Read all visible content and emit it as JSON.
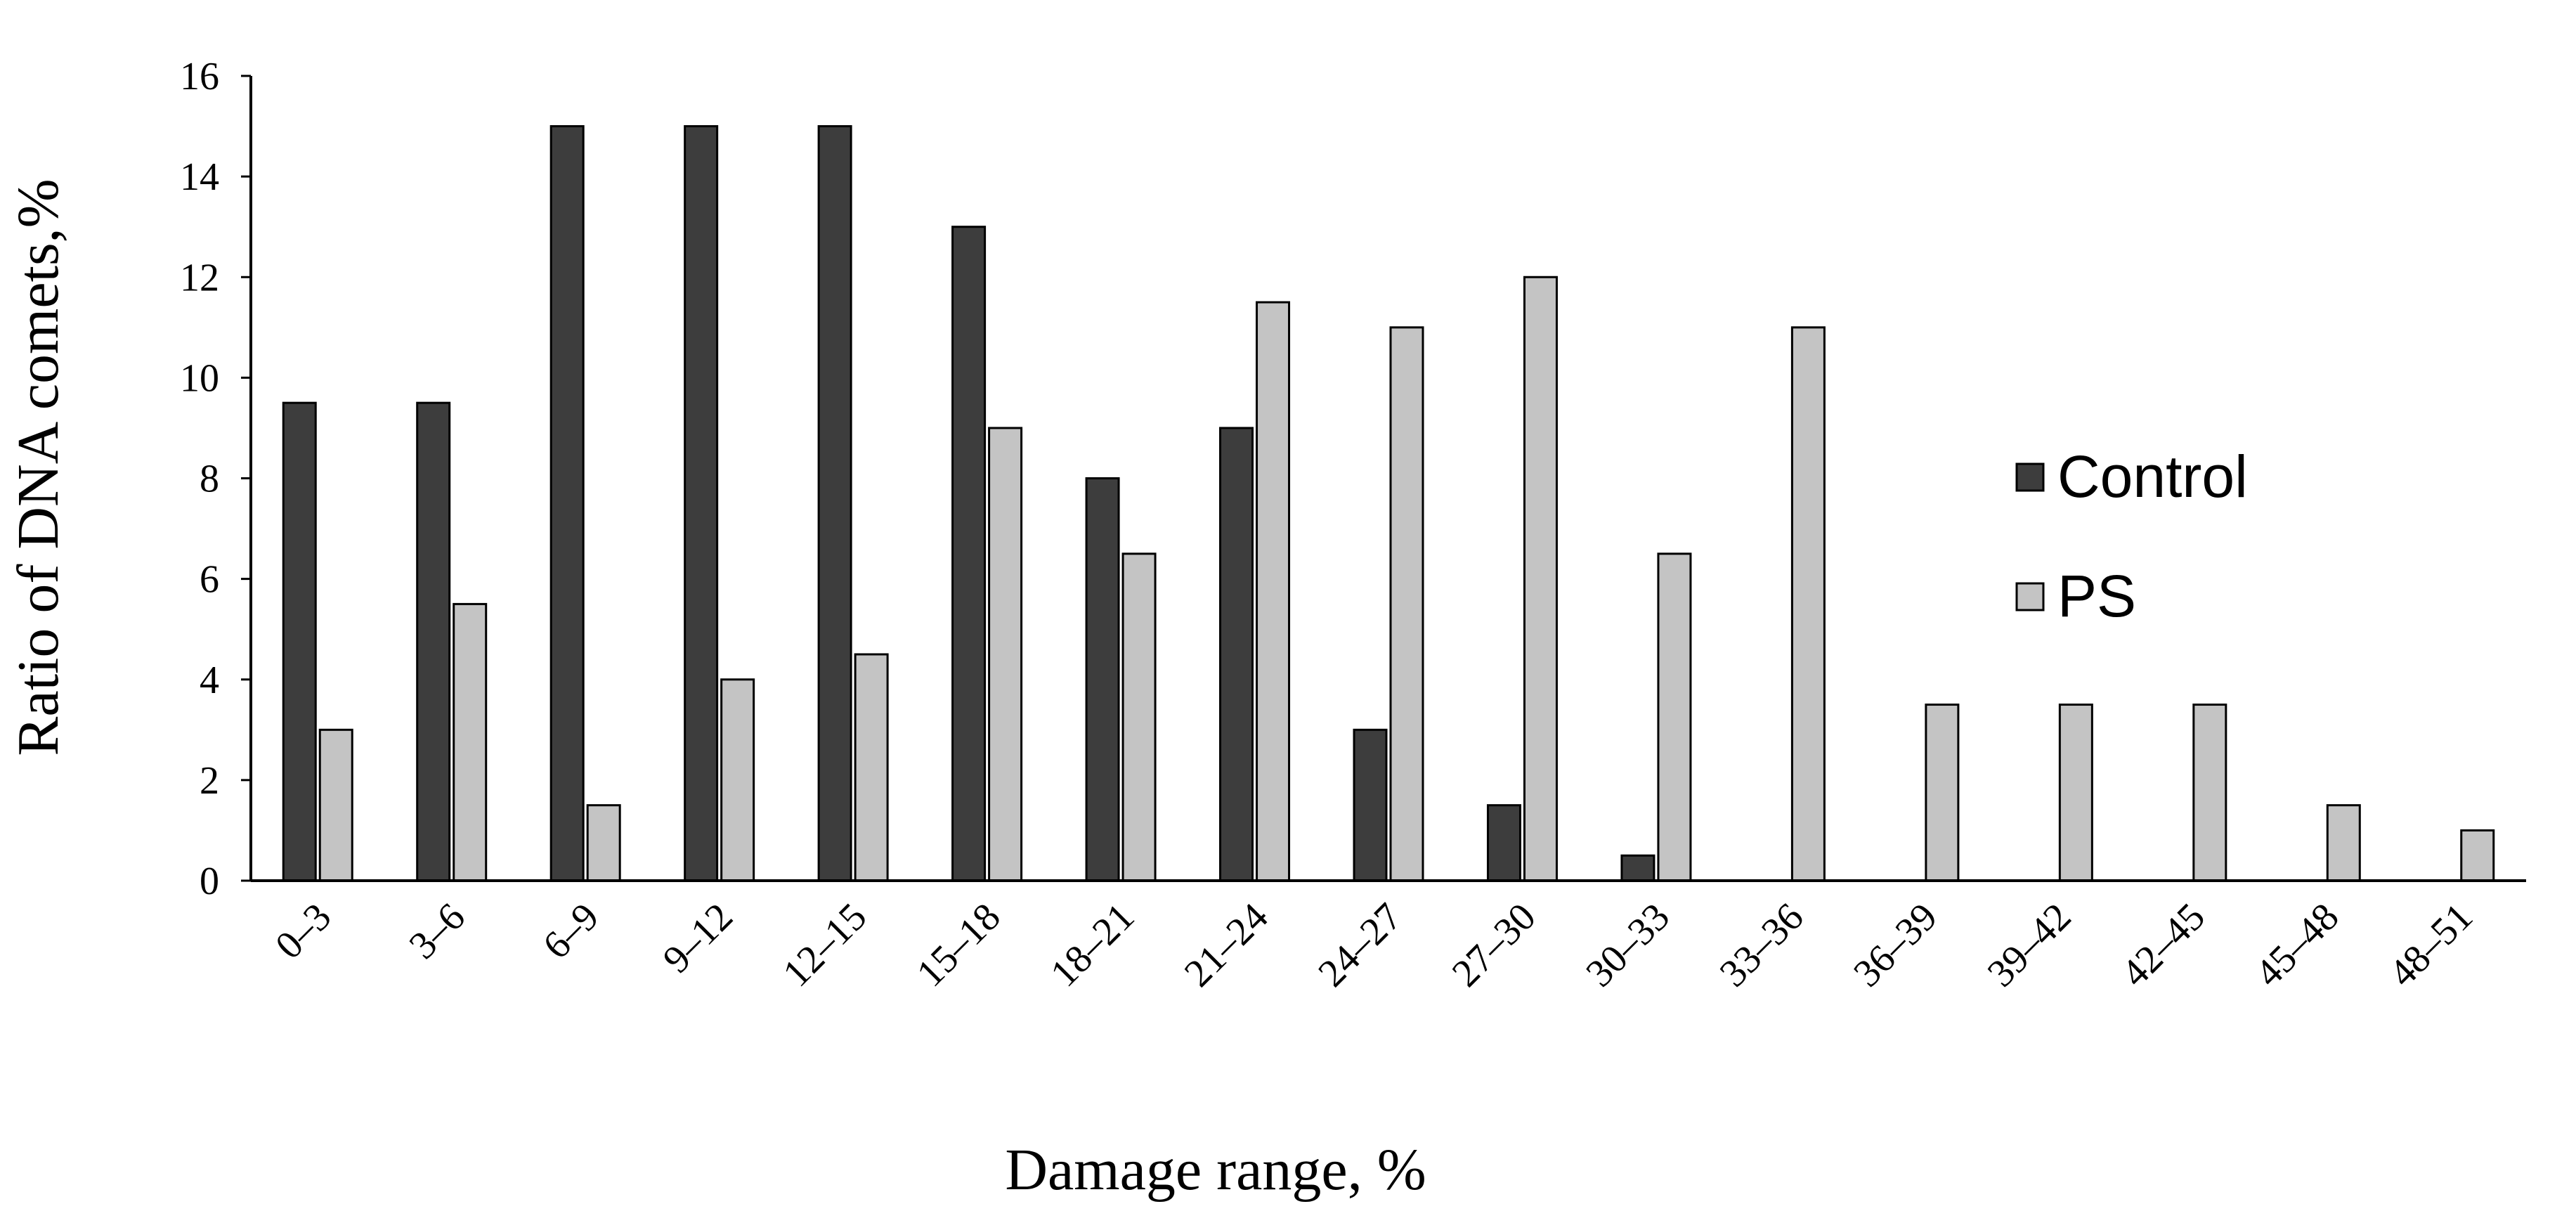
{
  "chart_data": {
    "type": "bar",
    "xlabel": "Damage range, %",
    "ylabel": "Ratio of DNA comets,%",
    "ylim": [
      0,
      16
    ],
    "yticks": [
      "0",
      "2",
      "4",
      "6",
      "8",
      "10",
      "12",
      "14",
      "16"
    ],
    "grid": false,
    "legend_position": "right",
    "categories": [
      "0–3",
      "3–6",
      "6–9",
      "9–12",
      "12–15",
      "15–18",
      "18–21",
      "21–24",
      "24–27",
      "27–30",
      "30–33",
      "33–36",
      "36–39",
      "39–42",
      "42–45",
      "45–48",
      "48–51"
    ],
    "series": [
      {
        "name": "Control",
        "color": "#3d3d3d",
        "values": [
          9.5,
          9.5,
          15,
          15,
          15,
          13,
          8,
          9,
          3,
          1.5,
          0.5,
          0,
          0,
          0,
          0,
          0,
          0
        ]
      },
      {
        "name": "PS",
        "color": "#c4c4c4",
        "values": [
          3,
          5.5,
          1.5,
          4,
          4.5,
          9,
          6.5,
          11.5,
          11,
          12,
          6.5,
          11,
          3.5,
          3.5,
          3.5,
          1.5,
          1
        ]
      }
    ]
  }
}
